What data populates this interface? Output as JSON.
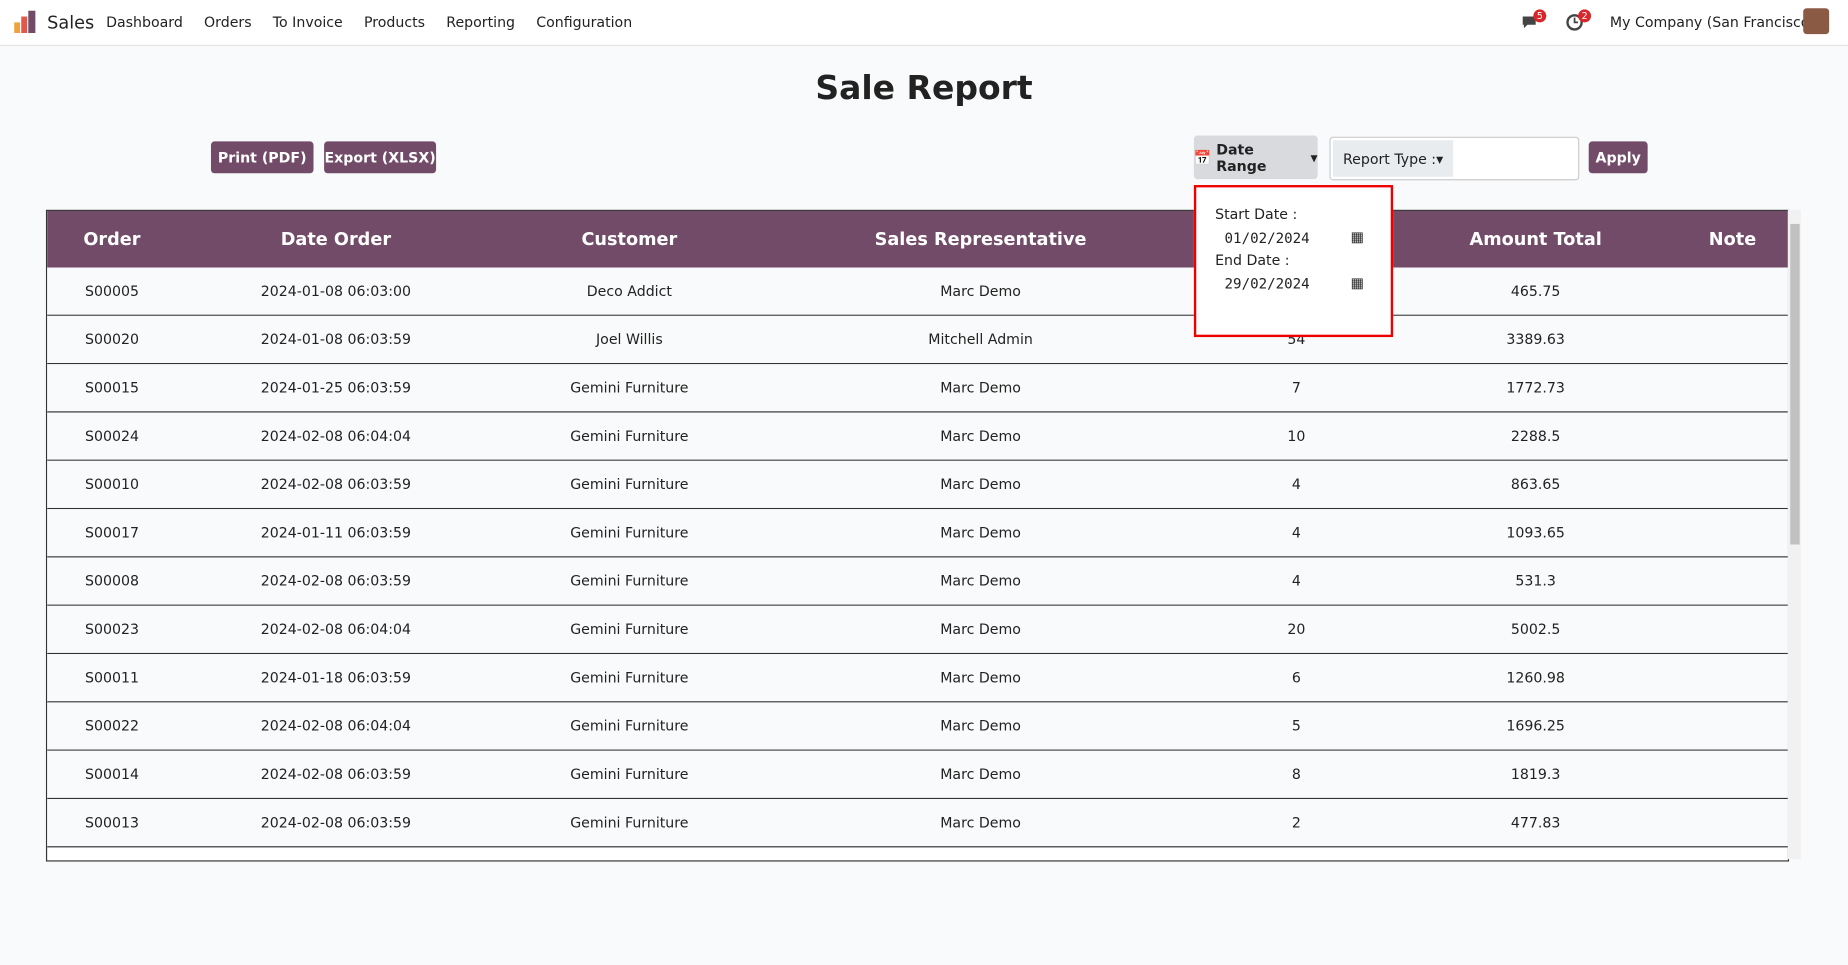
{
  "header": {
    "app": "Sales",
    "menu": [
      "Dashboard",
      "Orders",
      "To Invoice",
      "Products",
      "Reporting",
      "Configuration"
    ],
    "messages_badge": "5",
    "activities_badge": "2",
    "company": "My Company (San Francisco)"
  },
  "page": {
    "title": "Sale Report",
    "buttons": {
      "print": "Print (PDF)",
      "export": "Export (XLSX)",
      "date_range": "Date Range",
      "report_type": "Report Type :",
      "apply": "Apply"
    },
    "filter": {
      "start_label": "Start Date :",
      "start_value": "01/02/2024",
      "end_label": "End Date :",
      "end_value": "29/02/2024"
    }
  },
  "table": {
    "columns": [
      "Order",
      "Date Order",
      "Customer",
      "Sales Representative",
      "Amount Total",
      "Note"
    ],
    "rows": [
      {
        "order": "S00005",
        "date": "2024-01-08 06:03:00",
        "customer": "Deco Addict",
        "rep": "Marc Demo",
        "amount": "465.75"
      },
      {
        "order": "S00020",
        "date": "2024-01-08 06:03:59",
        "customer": "Joel Willis",
        "rep": "Mitchell Admin",
        "qty": "54",
        "amount": "3389.63"
      },
      {
        "order": "S00015",
        "date": "2024-01-25 06:03:59",
        "customer": "Gemini Furniture",
        "rep": "Marc Demo",
        "qty": "7",
        "amount": "1772.73"
      },
      {
        "order": "S00024",
        "date": "2024-02-08 06:04:04",
        "customer": "Gemini Furniture",
        "rep": "Marc Demo",
        "qty": "10",
        "amount": "2288.5"
      },
      {
        "order": "S00010",
        "date": "2024-02-08 06:03:59",
        "customer": "Gemini Furniture",
        "rep": "Marc Demo",
        "qty": "4",
        "amount": "863.65"
      },
      {
        "order": "S00017",
        "date": "2024-01-11 06:03:59",
        "customer": "Gemini Furniture",
        "rep": "Marc Demo",
        "qty": "4",
        "amount": "1093.65"
      },
      {
        "order": "S00008",
        "date": "2024-02-08 06:03:59",
        "customer": "Gemini Furniture",
        "rep": "Marc Demo",
        "qty": "4",
        "amount": "531.3"
      },
      {
        "order": "S00023",
        "date": "2024-02-08 06:04:04",
        "customer": "Gemini Furniture",
        "rep": "Marc Demo",
        "qty": "20",
        "amount": "5002.5"
      },
      {
        "order": "S00011",
        "date": "2024-01-18 06:03:59",
        "customer": "Gemini Furniture",
        "rep": "Marc Demo",
        "qty": "6",
        "amount": "1260.98"
      },
      {
        "order": "S00022",
        "date": "2024-02-08 06:04:04",
        "customer": "Gemini Furniture",
        "rep": "Marc Demo",
        "qty": "5",
        "amount": "1696.25"
      },
      {
        "order": "S00014",
        "date": "2024-02-08 06:03:59",
        "customer": "Gemini Furniture",
        "rep": "Marc Demo",
        "qty": "8",
        "amount": "1819.3"
      },
      {
        "order": "S00013",
        "date": "2024-02-08 06:03:59",
        "customer": "Gemini Furniture",
        "rep": "Marc Demo",
        "qty": "2",
        "amount": "477.83"
      }
    ]
  }
}
